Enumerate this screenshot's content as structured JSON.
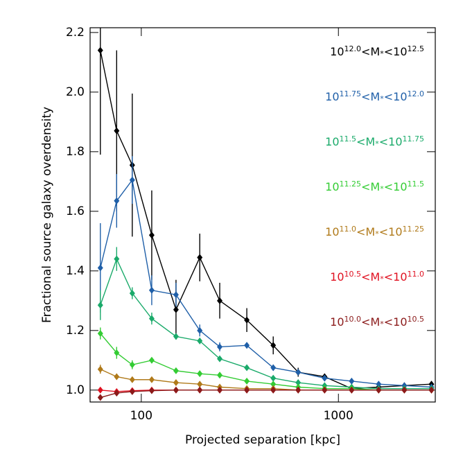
{
  "chart_data": {
    "type": "line",
    "xlabel": "Projected separation [kpc]",
    "ylabel": "Fractional source galaxy overdensity",
    "xscale": "log",
    "xlim": [
      55,
      3100
    ],
    "xticks": [
      100,
      1000
    ],
    "ylim": [
      0.96,
      2.216
    ],
    "yticks": [
      {
        "value": 1.0,
        "label": "1.0"
      },
      1.2,
      1.4,
      1.6,
      1.8,
      {
        "value": 2.0,
        "label": "2.0"
      },
      2.2
    ],
    "x": [
      62,
      75,
      90,
      113,
      150,
      198,
      250,
      343,
      467,
      625,
      851,
      1167,
      1600,
      2160,
      2965
    ],
    "series": [
      {
        "name": "10^{12.0}<M_*<10^{12.5}",
        "color": "#000000",
        "values": [
          2.14,
          1.87,
          1.755,
          1.52,
          1.27,
          1.445,
          1.3,
          1.235,
          1.15,
          1.06,
          1.045,
          1.005,
          1.01,
          1.015,
          1.02
        ],
        "errors": [
          0.35,
          0.27,
          0.24,
          0.15,
          0.1,
          0.08,
          0.06,
          0.04,
          0.03,
          0.015,
          0.01,
          0.01,
          0.01,
          0.01,
          0.01
        ]
      },
      {
        "name": "10^{11.75}<M_*<10^{12.0}",
        "color": "#1f5fa8",
        "values": [
          1.41,
          1.635,
          1.705,
          1.335,
          1.32,
          1.2,
          1.145,
          1.15,
          1.075,
          1.06,
          1.04,
          1.03,
          1.02,
          1.015,
          1.01
        ],
        "errors": [
          0.15,
          0.09,
          0.08,
          0.05,
          0.04,
          0.02,
          0.015,
          0.01,
          0.01,
          0.005,
          0.005,
          0.005,
          0.005,
          0.005,
          0.005
        ]
      },
      {
        "name": "10^{11.5}<M_*<10^{11.75}",
        "color": "#1aaa6a",
        "values": [
          1.285,
          1.44,
          1.325,
          1.24,
          1.18,
          1.165,
          1.105,
          1.075,
          1.04,
          1.025,
          1.015,
          1.01,
          1.005,
          1.005,
          1.005
        ],
        "errors": [
          0.05,
          0.04,
          0.02,
          0.02,
          0.01,
          0.01,
          0.005,
          0.005,
          0.005,
          0.005,
          0.005,
          0.005,
          0.005,
          0.005,
          0.005
        ]
      },
      {
        "name": "10^{11.25}<M_*<10^{11.5}",
        "color": "#33cc33",
        "values": [
          1.19,
          1.125,
          1.085,
          1.1,
          1.065,
          1.055,
          1.05,
          1.03,
          1.02,
          1.01,
          1.005,
          1.005,
          1.0,
          1.0,
          1.0
        ],
        "errors": [
          0.02,
          0.02,
          0.015,
          0.01,
          0.005,
          0.005,
          0.005,
          0.005,
          0.005,
          0.005,
          0.005,
          0.005,
          0.005,
          0.005,
          0.005
        ]
      },
      {
        "name": "10^{11.0}<M_*<10^{11.25}",
        "color": "#b07a1a",
        "values": [
          1.07,
          1.045,
          1.035,
          1.035,
          1.025,
          1.02,
          1.01,
          1.005,
          1.005,
          1.0,
          1.0,
          1.0,
          1.0,
          1.0,
          1.0
        ],
        "errors": [
          0.015,
          0.01,
          0.005,
          0.005,
          0.005,
          0.005,
          0.005,
          0.005,
          0.005,
          0.005,
          0.005,
          0.005,
          0.005,
          0.005,
          0.005
        ]
      },
      {
        "name": "10^{10.5}<M_*<10^{11.0}",
        "color": "#e01020",
        "values": [
          1.0,
          0.995,
          0.998,
          1.0,
          1.0,
          1.0,
          1.0,
          1.0,
          1.0,
          1.0,
          1.0,
          1.0,
          1.0,
          1.0,
          1.0
        ],
        "errors": [
          0.005,
          0.005,
          0.005,
          0.005,
          0.005,
          0.005,
          0.005,
          0.005,
          0.005,
          0.005,
          0.005,
          0.005,
          0.005,
          0.005,
          0.005
        ]
      },
      {
        "name": "10^{10.0}<M_*<10^{10.5}",
        "color": "#8b1a1a",
        "values": [
          0.975,
          0.99,
          0.995,
          0.998,
          1.0,
          1.0,
          1.0,
          1.0,
          1.0,
          1.0,
          1.0,
          1.0,
          1.0,
          1.0,
          1.0
        ],
        "errors": [
          0.005,
          0.005,
          0.005,
          0.005,
          0.005,
          0.005,
          0.005,
          0.005,
          0.005,
          0.005,
          0.005,
          0.005,
          0.005,
          0.005,
          0.005
        ]
      }
    ]
  }
}
